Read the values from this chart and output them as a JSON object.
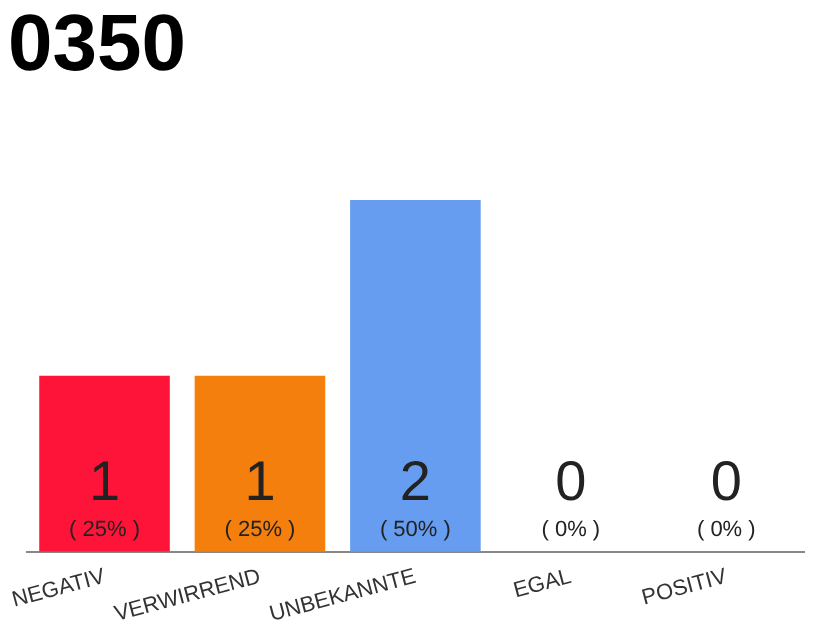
{
  "chart_data": {
    "type": "bar",
    "title": "0350",
    "categories": [
      "NEGATIV",
      "VERWIRREND",
      "UNBEKANNTE",
      "EGAL",
      "POSITIV"
    ],
    "values": [
      1,
      1,
      2,
      0,
      0
    ],
    "colors": [
      "#ff1439",
      "#f47f0c",
      "#679df0",
      "#679df0",
      "#679df0"
    ],
    "ylim": [
      0,
      2
    ],
    "data_labels": true,
    "tick_labels": "x",
    "grid": false,
    "legend": false,
    "annotations": [
      "( 25% )",
      "( 25% )",
      "( 50% )",
      "( 0% )",
      "( 0% )"
    ]
  }
}
